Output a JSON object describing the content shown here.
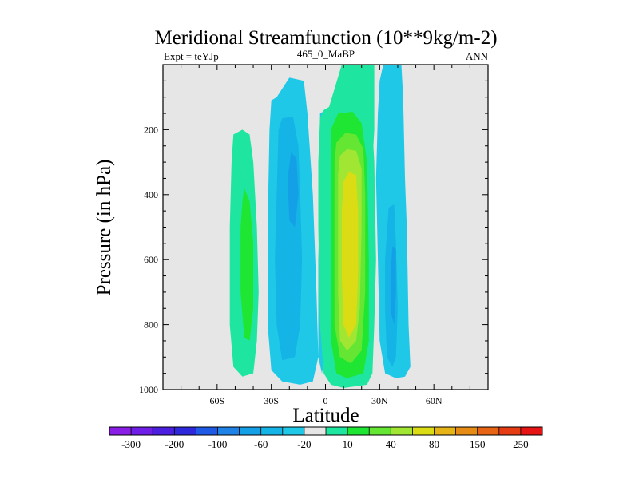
{
  "chart_data": {
    "type": "heatmap",
    "subtype": "filled-contour",
    "title": "Meridional Streamfunction (10**9kg/m-2)",
    "left_label": "Expt = teYJp",
    "center_label": "465_0_MaBP",
    "right_label": "ANN",
    "xlabel": "Latitude",
    "ylabel": "Pressure (in hPa)",
    "xlim": [
      -90,
      90
    ],
    "ylim": [
      1000,
      0
    ],
    "y_reversed": true,
    "x_ticks": [
      {
        "value": -60,
        "label": "60S"
      },
      {
        "value": -30,
        "label": "30S"
      },
      {
        "value": 0,
        "label": "0"
      },
      {
        "value": 30,
        "label": "30N"
      },
      {
        "value": 60,
        "label": "60N"
      }
    ],
    "y_ticks": [
      {
        "value": 200,
        "label": "200"
      },
      {
        "value": 400,
        "label": "400"
      },
      {
        "value": 600,
        "label": "600"
      },
      {
        "value": 800,
        "label": "800"
      },
      {
        "value": 1000,
        "label": "1000"
      }
    ],
    "background_color": "#e6e6e6",
    "colorbar": {
      "colors": [
        "#8a1ee6",
        "#6e1ee6",
        "#4b1ee0",
        "#2d28dc",
        "#1e5ae6",
        "#1e82e6",
        "#14a0e6",
        "#14b4e6",
        "#1ec8e6",
        "#e6e6e6",
        "#1ee6a0",
        "#1ee632",
        "#64e632",
        "#a0e632",
        "#dcdc14",
        "#e6b414",
        "#e68c14",
        "#e66414",
        "#e63c14",
        "#e61414"
      ],
      "labels": [
        {
          "boundary": 1,
          "text": "-300"
        },
        {
          "boundary": 3,
          "text": "-200"
        },
        {
          "boundary": 5,
          "text": "-100"
        },
        {
          "boundary": 7,
          "text": "-60"
        },
        {
          "boundary": 9,
          "text": "-20"
        },
        {
          "boundary": 11,
          "text": "10"
        },
        {
          "boundary": 13,
          "text": "40"
        },
        {
          "boundary": 15,
          "text": "80"
        },
        {
          "boundary": 17,
          "text": "150"
        },
        {
          "boundary": 19,
          "text": "250"
        }
      ]
    },
    "contour_regions": [
      {
        "name": "sh-outer-positive-cell",
        "level_index": 10,
        "outline": [
          [
            -51,
            215
          ],
          [
            -46,
            200
          ],
          [
            -42,
            215
          ],
          [
            -40,
            300
          ],
          [
            -38,
            500
          ],
          [
            -37,
            700
          ],
          [
            -38,
            850
          ],
          [
            -40,
            950
          ],
          [
            -46,
            960
          ],
          [
            -51,
            930
          ],
          [
            -53,
            800
          ],
          [
            -53,
            500
          ],
          [
            -52,
            300
          ]
        ]
      },
      {
        "name": "sh-outer-positive-core",
        "level_index": 11,
        "outline": [
          [
            -45,
            380
          ],
          [
            -42,
            420
          ],
          [
            -40,
            550
          ],
          [
            -40,
            750
          ],
          [
            -42,
            850
          ],
          [
            -45,
            840
          ],
          [
            -47,
            700
          ],
          [
            -47,
            500
          ],
          [
            -46,
            420
          ]
        ]
      },
      {
        "name": "sh-negative-cell",
        "level_index": 8,
        "outline": [
          [
            -27,
            100
          ],
          [
            -20,
            40
          ],
          [
            -12,
            50
          ],
          [
            -10,
            150
          ],
          [
            -7,
            400
          ],
          [
            -5,
            700
          ],
          [
            -4,
            900
          ],
          [
            -7,
            975
          ],
          [
            -14,
            985
          ],
          [
            -24,
            975
          ],
          [
            -30,
            940
          ],
          [
            -32,
            800
          ],
          [
            -32,
            500
          ],
          [
            -31,
            200
          ],
          [
            -30,
            110
          ]
        ]
      },
      {
        "name": "sh-negative-mid",
        "level_index": 7,
        "outline": [
          [
            -24,
            165
          ],
          [
            -18,
            160
          ],
          [
            -15,
            250
          ],
          [
            -14,
            400
          ],
          [
            -13,
            600
          ],
          [
            -14,
            800
          ],
          [
            -17,
            900
          ],
          [
            -24,
            910
          ],
          [
            -27,
            800
          ],
          [
            -28,
            600
          ],
          [
            -27,
            400
          ],
          [
            -26,
            200
          ]
        ]
      },
      {
        "name": "sh-negative-core",
        "level_index": 6,
        "outline": [
          [
            -19,
            270
          ],
          [
            -16,
            290
          ],
          [
            -15,
            400
          ],
          [
            -17,
            500
          ],
          [
            -20,
            480
          ],
          [
            -21,
            350
          ]
        ]
      },
      {
        "name": "equatorial-negative-sliver",
        "level_index": 8,
        "outline": [
          [
            -3,
            150
          ],
          [
            0,
            140
          ],
          [
            1,
            250
          ],
          [
            0,
            500
          ],
          [
            0,
            800
          ],
          [
            0,
            900
          ],
          [
            -2,
            950
          ],
          [
            -4,
            900
          ],
          [
            -4,
            600
          ],
          [
            -3,
            400
          ],
          [
            -3,
            200
          ]
        ]
      },
      {
        "name": "hadley-cell-10",
        "level_index": 10,
        "outline": [
          [
            -3,
            165
          ],
          [
            -1,
            140
          ],
          [
            2,
            130
          ],
          [
            9,
            0
          ],
          [
            20,
            0
          ],
          [
            25,
            100
          ],
          [
            27,
            300
          ],
          [
            28,
            600
          ],
          [
            27,
            800
          ],
          [
            26,
            950
          ],
          [
            23,
            985
          ],
          [
            10,
            995
          ],
          [
            3,
            985
          ],
          [
            -1,
            950
          ],
          [
            -3,
            800
          ],
          [
            -4,
            500
          ],
          [
            -4,
            300
          ]
        ]
      },
      {
        "name": "hadley-cell-40",
        "level_index": 11,
        "outline": [
          [
            3,
            200
          ],
          [
            7,
            150
          ],
          [
            15,
            145
          ],
          [
            20,
            180
          ],
          [
            23,
            300
          ],
          [
            24,
            600
          ],
          [
            24,
            850
          ],
          [
            21,
            950
          ],
          [
            12,
            965
          ],
          [
            6,
            950
          ],
          [
            3,
            850
          ],
          [
            3,
            500
          ],
          [
            3,
            300
          ]
        ]
      },
      {
        "name": "hadley-cell-80",
        "level_index": 12,
        "outline": [
          [
            6,
            240
          ],
          [
            11,
            210
          ],
          [
            17,
            215
          ],
          [
            21,
            260
          ],
          [
            22,
            400
          ],
          [
            22,
            700
          ],
          [
            20,
            880
          ],
          [
            14,
            920
          ],
          [
            8,
            900
          ],
          [
            5,
            800
          ],
          [
            5,
            500
          ],
          [
            5,
            300
          ]
        ]
      },
      {
        "name": "hadley-cell-yellow",
        "level_index": 13,
        "outline": [
          [
            8,
            280
          ],
          [
            12,
            260
          ],
          [
            17,
            265
          ],
          [
            20,
            320
          ],
          [
            20,
            500
          ],
          [
            19,
            750
          ],
          [
            17,
            850
          ],
          [
            12,
            880
          ],
          [
            8,
            850
          ],
          [
            7,
            700
          ],
          [
            7,
            450
          ],
          [
            7,
            340
          ]
        ]
      },
      {
        "name": "hadley-cell-core",
        "level_index": 14,
        "outline": [
          [
            10,
            360
          ],
          [
            13,
            330
          ],
          [
            17,
            340
          ],
          [
            18,
            450
          ],
          [
            18,
            650
          ],
          [
            17,
            800
          ],
          [
            13,
            840
          ],
          [
            10,
            800
          ],
          [
            9,
            650
          ],
          [
            9,
            450
          ]
        ]
      },
      {
        "name": "nh-green-fringe",
        "level_index": 10,
        "outline": [
          [
            20,
            0
          ],
          [
            27,
            0
          ],
          [
            27,
            200
          ],
          [
            25,
            400
          ]
        ]
      },
      {
        "name": "nh-negative-cell",
        "level_index": 8,
        "outline": [
          [
            32,
            0
          ],
          [
            42,
            0
          ],
          [
            43,
            100
          ],
          [
            44,
            350
          ],
          [
            45,
            500
          ],
          [
            46,
            800
          ],
          [
            47,
            930
          ],
          [
            44,
            960
          ],
          [
            39,
            965
          ],
          [
            33,
            950
          ],
          [
            30,
            850
          ],
          [
            29,
            600
          ],
          [
            28,
            350
          ],
          [
            29,
            150
          ],
          [
            30,
            50
          ]
        ]
      },
      {
        "name": "nh-negative-mid",
        "level_index": 7,
        "outline": [
          [
            35,
            440
          ],
          [
            38,
            430
          ],
          [
            39,
            550
          ],
          [
            40,
            750
          ],
          [
            39,
            900
          ],
          [
            37,
            930
          ],
          [
            34,
            900
          ],
          [
            33,
            750
          ],
          [
            33,
            600
          ]
        ]
      },
      {
        "name": "nh-negative-core",
        "level_index": 6,
        "outline": [
          [
            37,
            560
          ],
          [
            39,
            570
          ],
          [
            39,
            700
          ],
          [
            38,
            800
          ],
          [
            36,
            760
          ],
          [
            36,
            650
          ]
        ]
      }
    ]
  }
}
